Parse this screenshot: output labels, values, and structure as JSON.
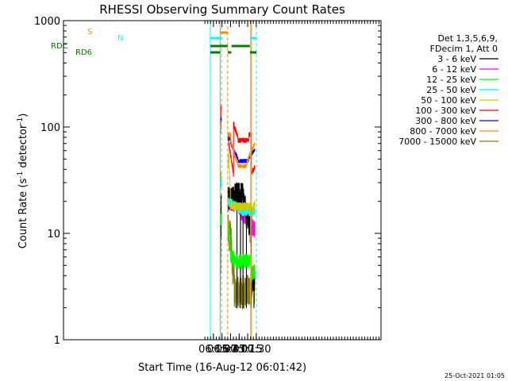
{
  "chart_data": {
    "type": "line",
    "title": "RHESSI Observing Summary Count Rates",
    "xlabel": "Start Time (16-Aug-12 06:01:42)",
    "ylabel_main": "Count Rate (s",
    "ylabel_sup1": "-1",
    "ylabel_mid": " detector",
    "ylabel_sup2": "-1",
    "ylabel_end": ")",
    "timestamp": "25-Oct-2021 01:05",
    "xlim": [
      362.0,
      1660.0
    ],
    "ylim": [
      1,
      1000
    ],
    "yscale": "log",
    "x_ticks": [
      {
        "value": 975,
        "label": "06:15"
      },
      {
        "value": 1010,
        "label": "06:30"
      },
      {
        "value": 1045,
        "label": "06:45"
      },
      {
        "value": 1080,
        "label": "07:00"
      },
      {
        "value": 1115,
        "label": "07:15"
      },
      {
        "value": 1150,
        "label": "07:30"
      }
    ],
    "y_ticks": [
      {
        "value": 1,
        "label": "1"
      },
      {
        "value": 10,
        "label": "10"
      },
      {
        "value": 100,
        "label": "100"
      },
      {
        "value": 1000,
        "label": "1000"
      }
    ],
    "legend": {
      "position": "right",
      "header": [
        "Det 1,3,5,6,9,",
        "FDecim 1, Att 0"
      ],
      "entries": [
        {
          "label": "3 - 6 keV",
          "color": "#000000"
        },
        {
          "label": "6 - 12 keV",
          "color": "#ff00ff"
        },
        {
          "label": "12 - 25 keV",
          "color": "#00ff00"
        },
        {
          "label": "25 - 50 keV",
          "color": "#00ffff"
        },
        {
          "label": "50 - 100 keV",
          "color": "#cccc00"
        },
        {
          "label": "100 - 300 keV",
          "color": "#ff0000"
        },
        {
          "label": "300 - 800 keV",
          "color": "#0000ff"
        },
        {
          "label": "800 - 7000 keV",
          "color": "#ff8c00"
        },
        {
          "label": "7000 - 15000 keV",
          "color": "#8b8000"
        }
      ]
    },
    "flag_labels": {
      "s": {
        "text": "S",
        "color": "#ff8c00"
      },
      "n": {
        "text": "N",
        "color": "#00ffff"
      },
      "rdc": {
        "text": "RDC",
        "color": "#008000"
      },
      "rd6": {
        "text": "RD6",
        "color": "#008000"
      }
    }
  }
}
